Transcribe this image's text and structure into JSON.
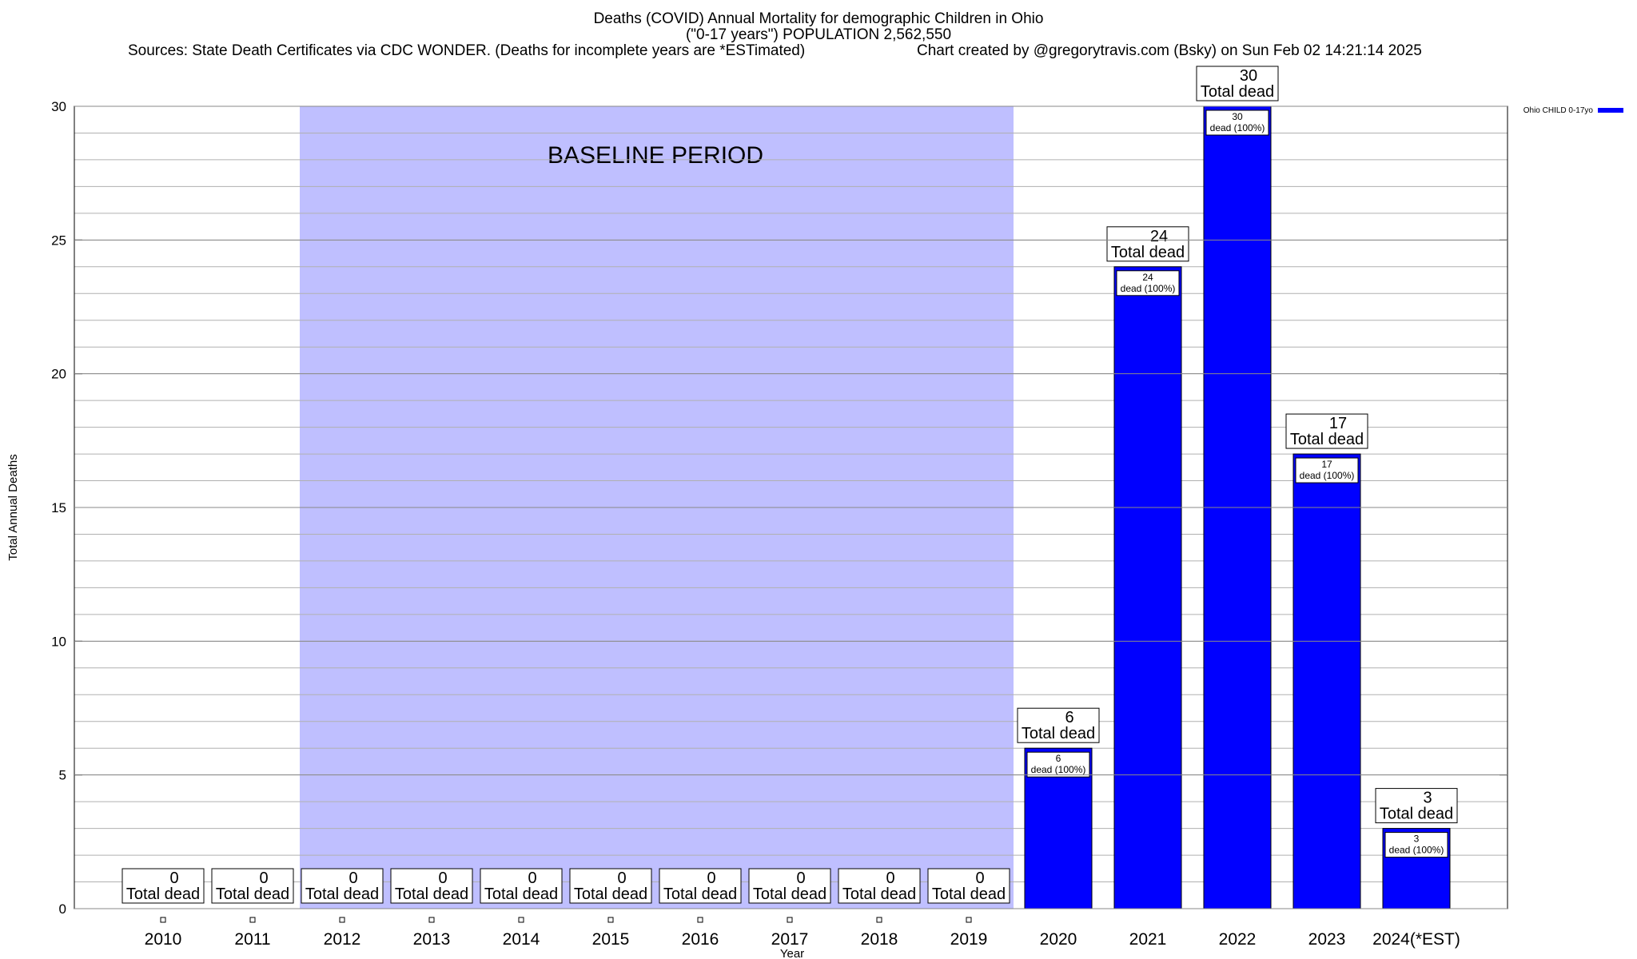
{
  "chart_data": {
    "type": "bar",
    "title": "Deaths (COVID) Annual Mortality for demographic Children in Ohio",
    "subtitle": "(\"0-17 years\") POPULATION 2,562,550",
    "sources_text": "Sources: State Death Certificates via CDC WONDER. (Deaths for incomplete years are *ESTimated)",
    "credit_text": "Chart created by @gregorytravis.com (Bsky) on Sun Feb 02 14:21:14 2025",
    "xlabel": "Year",
    "ylabel": "Total Annual Deaths",
    "ylim": [
      0,
      30
    ],
    "y_ticks": [
      0,
      5,
      10,
      15,
      20,
      25,
      30
    ],
    "grid": true,
    "legend_position": "top-right",
    "categories": [
      "2010",
      "2011",
      "2012",
      "2013",
      "2014",
      "2015",
      "2016",
      "2017",
      "2018",
      "2019",
      "2020",
      "2021",
      "2022",
      "2023",
      "2024(*EST)"
    ],
    "series": [
      {
        "name": "Ohio CHILD 0-17yo",
        "color": "#0000ff",
        "values": [
          0,
          0,
          0,
          0,
          0,
          0,
          0,
          0,
          0,
          0,
          6,
          24,
          30,
          17,
          3
        ]
      }
    ],
    "total_label_text": "Total dead",
    "bar_label_suffix": "dead (100%)",
    "baseline": {
      "label": "BASELINE PERIOD",
      "start_category": "2012",
      "end_category": "2019",
      "color": "#bfbfff"
    }
  }
}
